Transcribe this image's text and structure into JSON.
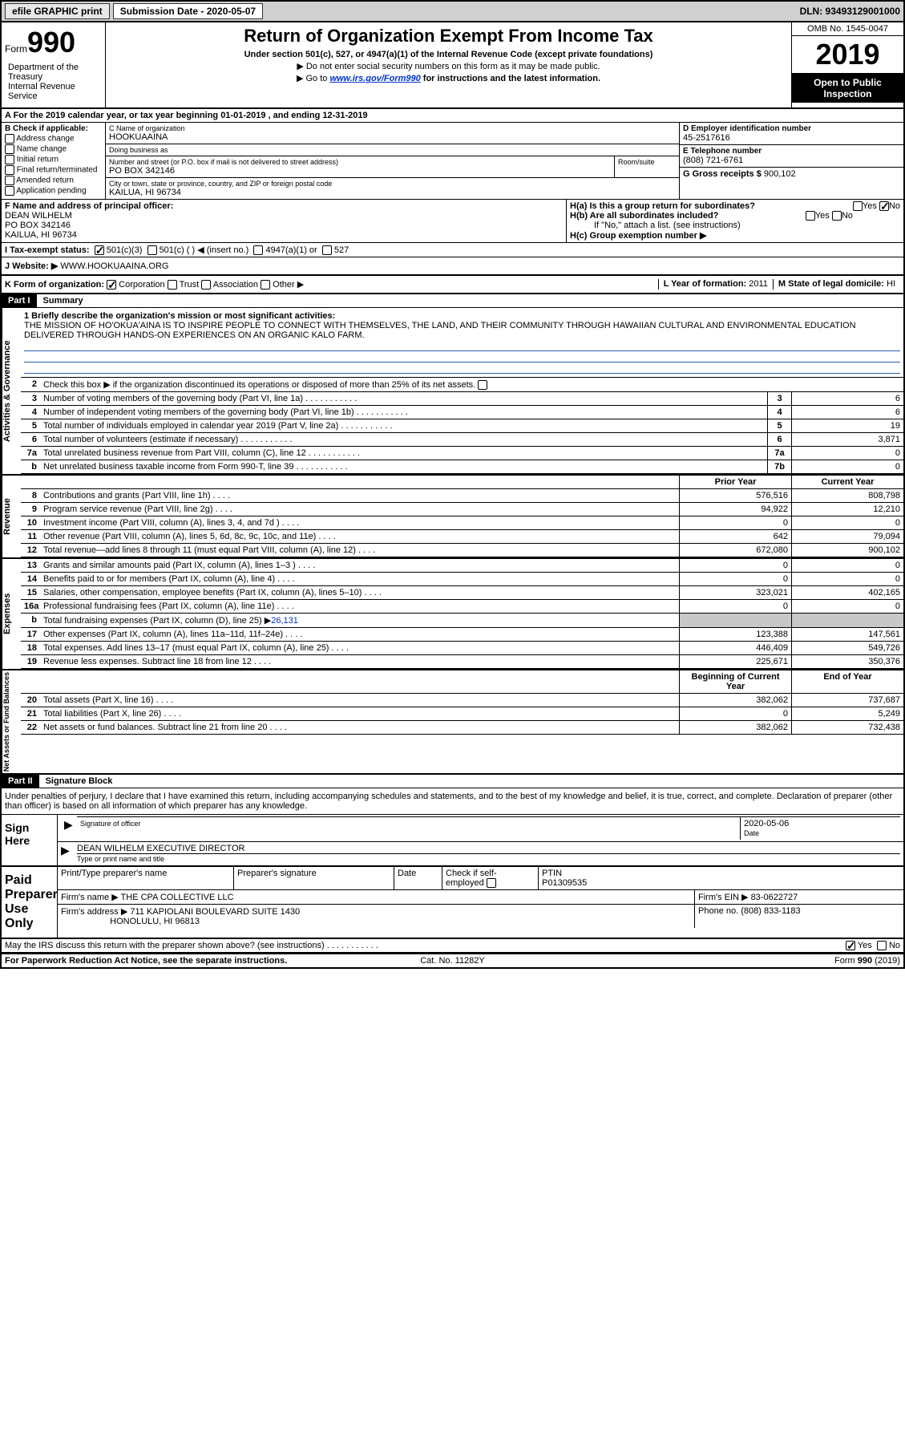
{
  "topbar": {
    "efile": "efile GRAPHIC print",
    "subdate_label": "Submission Date - 2020-05-07",
    "dln": "DLN: 93493129001000"
  },
  "header": {
    "form_prefix": "Form",
    "form_num": "990",
    "title": "Return of Organization Exempt From Income Tax",
    "sub1": "Under section 501(c), 527, or 4947(a)(1) of the Internal Revenue Code (except private foundations)",
    "sub2": "▶ Do not enter social security numbers on this form as it may be made public.",
    "sub3_pre": "▶ Go to ",
    "sub3_link": "www.irs.gov/Form990",
    "sub3_post": " for instructions and the latest information.",
    "dept": "Department of the Treasury\nInternal Revenue Service",
    "omb": "OMB No. 1545-0047",
    "year": "2019",
    "open": "Open to Public Inspection"
  },
  "line_a": "A For the 2019 calendar year, or tax year beginning 01-01-2019     , and ending 12-31-2019",
  "section_b": {
    "header": "B Check if applicable:",
    "items": [
      "Address change",
      "Name change",
      "Initial return",
      "Final return/terminated",
      "Amended return",
      "Application pending"
    ]
  },
  "section_c": {
    "name_label": "C Name of organization",
    "name": "HOOKUAAINA",
    "dba_label": "Doing business as",
    "dba": "",
    "addr_label": "Number and street (or P.O. box if mail is not delivered to street address)",
    "room_label": "Room/suite",
    "addr": "PO BOX 342146",
    "city_label": "City or town, state or province, country, and ZIP or foreign postal code",
    "city": "KAILUA, HI  96734"
  },
  "section_d": {
    "ein_label": "D Employer identification number",
    "ein": "45-2517616",
    "phone_label": "E Telephone number",
    "phone": "(808) 721-6761",
    "gross_label": "G Gross receipts $ ",
    "gross": "900,102"
  },
  "section_f": {
    "label": "F  Name and address of principal officer:",
    "name": "DEAN WILHELM",
    "addr1": "PO BOX 342146",
    "addr2": "KAILUA, HI  96734"
  },
  "section_h": {
    "a_label": "H(a)  Is this a group return for subordinates?",
    "b_label": "H(b)  Are all subordinates included?",
    "b_note": "If \"No,\" attach a list. (see instructions)",
    "c_label": "H(c)  Group exemption number ▶",
    "yes": "Yes",
    "no": "No"
  },
  "line_i": {
    "label": "I    Tax-exempt status:",
    "c3": "501(c)(3)",
    "c": "501(c) (  ) ◀ (insert no.)",
    "a1": "4947(a)(1) or",
    "s527": "527"
  },
  "line_j": {
    "label": "J   Website: ▶",
    "val": "WWW.HOOKUAAINA.ORG"
  },
  "line_k": {
    "label": "K Form of organization:",
    "corp": "Corporation",
    "trust": "Trust",
    "assoc": "Association",
    "other": "Other ▶",
    "l_label": "L Year of formation: ",
    "l_val": "2011",
    "m_label": "M State of legal domicile: ",
    "m_val": "HI"
  },
  "part1": {
    "hdr": "Part I",
    "title": "Summary",
    "mission_label": "1  Briefly describe the organization's mission or most significant activities:",
    "mission": "THE MISSION OF HO'OKUA'AINA IS TO INSPIRE PEOPLE TO CONNECT WITH THEMSELVES, THE LAND, AND THEIR COMMUNITY THROUGH HAWAIIAN CULTURAL AND ENVIRONMENTAL EDUCATION DELIVERED THROUGH HANDS-ON EXPERIENCES ON AN ORGANIC KALO FARM.",
    "line2": "Check this box ▶        if the organization discontinued its operations or disposed of more than 25% of its net assets."
  },
  "side_labels": {
    "ag": "Activities & Governance",
    "rev": "Revenue",
    "exp": "Expenses",
    "net": "Net Assets or Fund Balances"
  },
  "gov_lines": [
    {
      "n": "3",
      "d": "Number of voting members of the governing body (Part VI, line 1a)",
      "b": "3",
      "v": "6"
    },
    {
      "n": "4",
      "d": "Number of independent voting members of the governing body (Part VI, line 1b)",
      "b": "4",
      "v": "6"
    },
    {
      "n": "5",
      "d": "Total number of individuals employed in calendar year 2019 (Part V, line 2a)",
      "b": "5",
      "v": "19"
    },
    {
      "n": "6",
      "d": "Total number of volunteers (estimate if necessary)",
      "b": "6",
      "v": "3,871"
    },
    {
      "n": "7a",
      "d": "Total unrelated business revenue from Part VIII, column (C), line 12",
      "b": "7a",
      "v": "0"
    },
    {
      "n": "b",
      "d": "Net unrelated business taxable income from Form 990-T, line 39",
      "b": "7b",
      "v": "0"
    }
  ],
  "yr_hdr": {
    "prior": "Prior Year",
    "current": "Current Year"
  },
  "rev_lines": [
    {
      "n": "8",
      "d": "Contributions and grants (Part VIII, line 1h)",
      "p": "576,516",
      "c": "808,798"
    },
    {
      "n": "9",
      "d": "Program service revenue (Part VIII, line 2g)",
      "p": "94,922",
      "c": "12,210"
    },
    {
      "n": "10",
      "d": "Investment income (Part VIII, column (A), lines 3, 4, and 7d )",
      "p": "0",
      "c": "0"
    },
    {
      "n": "11",
      "d": "Other revenue (Part VIII, column (A), lines 5, 6d, 8c, 9c, 10c, and 11e)",
      "p": "642",
      "c": "79,094"
    },
    {
      "n": "12",
      "d": "Total revenue—add lines 8 through 11 (must equal Part VIII, column (A), line 12)",
      "p": "672,080",
      "c": "900,102"
    }
  ],
  "exp_lines": [
    {
      "n": "13",
      "d": "Grants and similar amounts paid (Part IX, column (A), lines 1–3 )",
      "p": "0",
      "c": "0"
    },
    {
      "n": "14",
      "d": "Benefits paid to or for members (Part IX, column (A), line 4)",
      "p": "0",
      "c": "0"
    },
    {
      "n": "15",
      "d": "Salaries, other compensation, employee benefits (Part IX, column (A), lines 5–10)",
      "p": "323,021",
      "c": "402,165"
    },
    {
      "n": "16a",
      "d": "Professional fundraising fees (Part IX, column (A), line 11e)",
      "p": "0",
      "c": "0"
    }
  ],
  "exp_b": {
    "n": "b",
    "d": "Total fundraising expenses (Part IX, column (D), line 25) ▶",
    "amt": "26,131"
  },
  "exp_lines2": [
    {
      "n": "17",
      "d": "Other expenses (Part IX, column (A), lines 11a–11d, 11f–24e)",
      "p": "123,388",
      "c": "147,561"
    },
    {
      "n": "18",
      "d": "Total expenses. Add lines 13–17 (must equal Part IX, column (A), line 25)",
      "p": "446,409",
      "c": "549,726"
    },
    {
      "n": "19",
      "d": "Revenue less expenses. Subtract line 18 from line 12",
      "p": "225,671",
      "c": "350,376"
    }
  ],
  "net_hdr": {
    "beg": "Beginning of Current Year",
    "end": "End of Year"
  },
  "net_lines": [
    {
      "n": "20",
      "d": "Total assets (Part X, line 16)",
      "p": "382,062",
      "c": "737,687"
    },
    {
      "n": "21",
      "d": "Total liabilities (Part X, line 26)",
      "p": "0",
      "c": "5,249"
    },
    {
      "n": "22",
      "d": "Net assets or fund balances. Subtract line 21 from line 20",
      "p": "382,062",
      "c": "732,438"
    }
  ],
  "part2": {
    "hdr": "Part II",
    "title": "Signature Block",
    "decl": "Under penalties of perjury, I declare that I have examined this return, including accompanying schedules and statements, and to the best of my knowledge and belief, it is true, correct, and complete. Declaration of preparer (other than officer) is based on all information of which preparer has any knowledge."
  },
  "sign": {
    "here": "Sign Here",
    "sig_label": "Signature of officer",
    "date_label": "Date",
    "date": "2020-05-06",
    "name": "DEAN WILHELM  EXECUTIVE DIRECTOR",
    "name_label": "Type or print name and title"
  },
  "prep": {
    "title": "Paid Preparer Use Only",
    "col1": "Print/Type preparer's name",
    "col2": "Preparer's signature",
    "col3": "Date",
    "col4_label": "Check         if self-employed",
    "col5_label": "PTIN",
    "ptin": "P01309535",
    "firm_label": "Firm's name     ▶",
    "firm": "THE CPA COLLECTIVE LLC",
    "ein_label": "Firm's EIN ▶",
    "ein": "83-0622727",
    "addr_label": "Firm's address ▶",
    "addr1": "711 KAPIOLANI BOULEVARD SUITE 1430",
    "addr2": "HONOLULU, HI  96813",
    "phone_label": "Phone no. ",
    "phone": "(808) 833-1183",
    "discuss": "May the IRS discuss this return with the preparer shown above? (see instructions)"
  },
  "footer": {
    "left": "For Paperwork Reduction Act Notice, see the separate instructions.",
    "mid": "Cat. No. 11282Y",
    "right": "Form 990 (2019)"
  }
}
